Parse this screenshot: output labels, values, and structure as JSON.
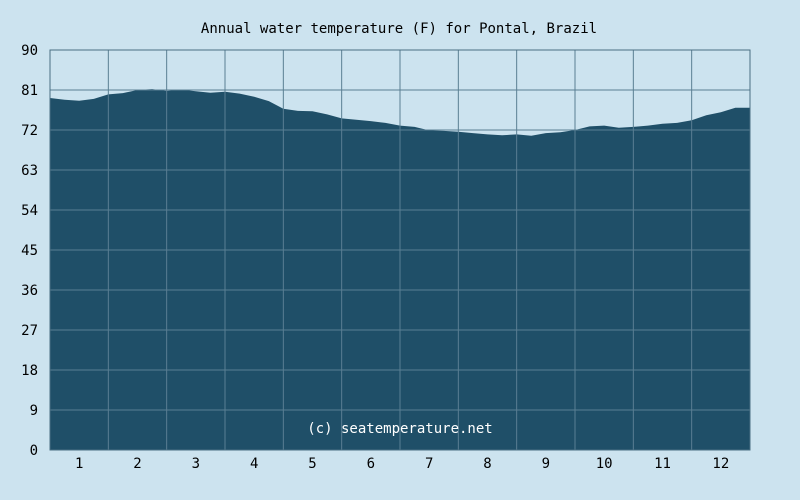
{
  "chart_data": {
    "type": "area",
    "title": "Annual water temperature (F) for Pontal, Brazil",
    "xlabel": "",
    "ylabel": "",
    "ylim": [
      0,
      90
    ],
    "xlim": [
      0.5,
      12.5
    ],
    "yticks": [
      0,
      9,
      18,
      27,
      36,
      45,
      54,
      63,
      72,
      81,
      90
    ],
    "xticks": [
      1,
      2,
      3,
      4,
      5,
      6,
      7,
      8,
      9,
      10,
      11,
      12
    ],
    "grid": true,
    "colors": {
      "fill": "#1f4f68",
      "background": "#cce3ef",
      "grid": "#5a7f93"
    },
    "credit": "(c) seatemperature.net",
    "series": [
      {
        "x": [
          0.5,
          0.75,
          1.0,
          1.25,
          1.5,
          1.75,
          2.0,
          2.25,
          2.5,
          2.75,
          3.0,
          3.25,
          3.5,
          3.75,
          4.0,
          4.25,
          4.5,
          4.75,
          5.0,
          5.25,
          5.5,
          5.75,
          6.0,
          6.25,
          6.5,
          6.75,
          7.0,
          7.25,
          7.5,
          7.75,
          8.0,
          8.25,
          8.5,
          8.75,
          9.0,
          9.25,
          9.5,
          9.75,
          10.0,
          10.25,
          10.5,
          10.75,
          11.0,
          11.25,
          11.5,
          11.75,
          12.0,
          12.25,
          12.5
        ],
        "values": [
          79.2,
          78.8,
          78.6,
          79.0,
          80.0,
          80.3,
          81.0,
          81.2,
          80.8,
          81.1,
          80.7,
          80.4,
          80.6,
          80.2,
          79.5,
          78.5,
          76.8,
          76.3,
          76.2,
          75.5,
          74.6,
          74.3,
          74.0,
          73.6,
          73.0,
          72.7,
          71.9,
          71.8,
          71.6,
          71.3,
          71.0,
          70.8,
          71.0,
          70.7,
          71.3,
          71.5,
          72.0,
          72.8,
          73.0,
          72.5,
          72.7,
          73.0,
          73.4,
          73.6,
          74.2,
          75.3,
          76.0,
          77.0,
          77.0
        ]
      }
    ]
  }
}
